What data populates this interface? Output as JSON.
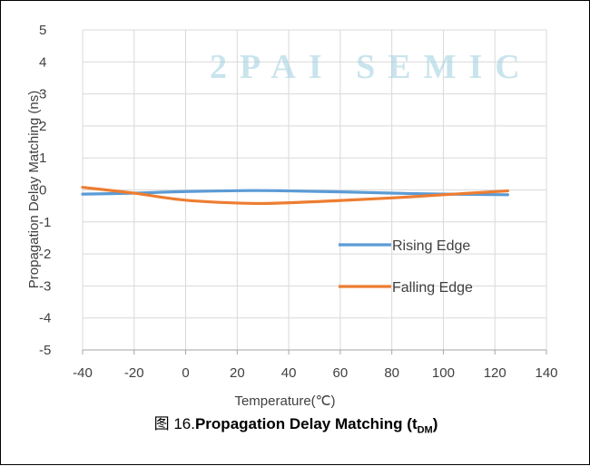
{
  "watermark": "2PAI SEMIC",
  "caption": {
    "prefix": "图 16.",
    "title": "Propagation Delay Matching (t",
    "subscript": "DM",
    "suffix": ")"
  },
  "colors": {
    "rising": "#5B9BD5",
    "falling": "#ED7D31",
    "grid": "#d9d9d9",
    "axis": "#a6a6a6"
  },
  "chart_data": {
    "type": "line",
    "title": "",
    "xlabel": "Temperature(℃)",
    "ylabel": "Propagation Delay Matching (ns)",
    "xlim": [
      -40,
      140
    ],
    "ylim": [
      -5,
      5
    ],
    "xticks": [
      -40,
      -20,
      0,
      20,
      40,
      60,
      80,
      100,
      120,
      140
    ],
    "yticks": [
      -5,
      -4,
      -3,
      -2,
      -1,
      0,
      1,
      2,
      3,
      4,
      5
    ],
    "grid": true,
    "legend_position": "lower-right",
    "series": [
      {
        "name": "Rising Edge",
        "color": "#5B9BD5",
        "x": [
          -40,
          -20,
          0,
          25,
          40,
          60,
          80,
          100,
          125
        ],
        "y": [
          -0.13,
          -0.1,
          -0.05,
          -0.02,
          -0.03,
          -0.06,
          -0.1,
          -0.13,
          -0.15
        ]
      },
      {
        "name": "Falling Edge",
        "color": "#ED7D31",
        "x": [
          -40,
          -20,
          0,
          25,
          40,
          60,
          80,
          100,
          125
        ],
        "y": [
          0.08,
          -0.1,
          -0.32,
          -0.42,
          -0.4,
          -0.33,
          -0.25,
          -0.15,
          -0.03
        ]
      }
    ]
  }
}
